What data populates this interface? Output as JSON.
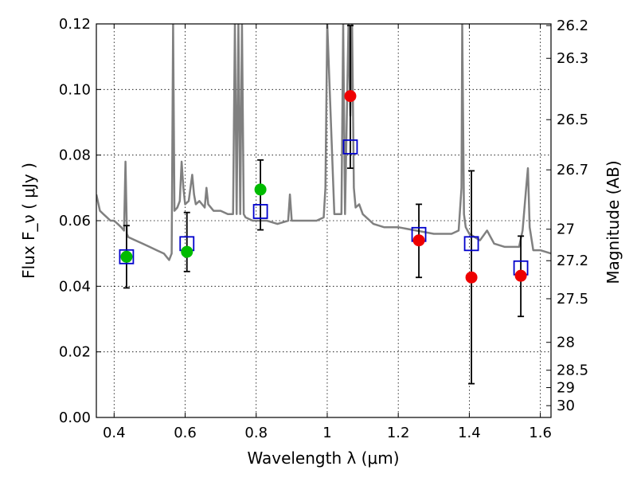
{
  "chart_data": {
    "type": "scatter",
    "title": "",
    "xlabel": "Wavelength  λ (μm)",
    "ylabel": "Flux  F_ν  ( μJy )",
    "ylabel_right": "Magnitude (AB)",
    "xlim": [
      0.35,
      1.63
    ],
    "ylim": [
      0.0,
      0.12
    ],
    "grid": true,
    "x_ticks": [
      0.4,
      0.6,
      0.8,
      1.0,
      1.2,
      1.4,
      1.6
    ],
    "x_tick_labels": [
      "0.4",
      "0.6",
      "0.8",
      "1",
      "1.2",
      "1.4",
      "1.6"
    ],
    "y_ticks": [
      0.0,
      0.02,
      0.04,
      0.06,
      0.08,
      0.1,
      0.12
    ],
    "y_tick_labels": [
      "0.00",
      "0.02",
      "0.04",
      "0.06",
      "0.08",
      "0.10",
      "0.12"
    ],
    "right_ticks": [
      {
        "label": "26.2",
        "flux": 0.1195
      },
      {
        "label": "26.3",
        "flux": 0.1095
      },
      {
        "label": "26.5",
        "flux": 0.0908
      },
      {
        "label": "26.7",
        "flux": 0.0755
      },
      {
        "label": "27",
        "flux": 0.0574
      },
      {
        "label": "27.2",
        "flux": 0.0478
      },
      {
        "label": "27.5",
        "flux": 0.0362
      },
      {
        "label": "28",
        "flux": 0.0229
      },
      {
        "label": "28.5",
        "flux": 0.0144
      },
      {
        "label": "29",
        "flux": 0.0091
      },
      {
        "label": "30",
        "flux": 0.0036
      }
    ],
    "series": [
      {
        "kind": "line",
        "color": "#808080",
        "x": [
          0.35,
          0.36,
          0.37,
          0.38,
          0.39,
          0.4,
          0.41,
          0.42,
          0.428,
          0.432,
          0.436,
          0.44,
          0.46,
          0.48,
          0.5,
          0.52,
          0.54,
          0.555,
          0.562,
          0.566,
          0.57,
          0.578,
          0.585,
          0.59,
          0.595,
          0.6,
          0.61,
          0.62,
          0.625,
          0.63,
          0.64,
          0.655,
          0.66,
          0.665,
          0.68,
          0.7,
          0.72,
          0.735,
          0.74,
          0.745,
          0.75,
          0.755,
          0.76,
          0.765,
          0.77,
          0.79,
          0.81,
          0.83,
          0.86,
          0.89,
          0.895,
          0.9,
          0.94,
          0.97,
          0.99,
          0.995,
          1.0,
          1.02,
          1.04,
          1.045,
          1.05,
          1.06,
          1.065,
          1.07,
          1.075,
          1.08,
          1.09,
          1.1,
          1.13,
          1.16,
          1.2,
          1.25,
          1.3,
          1.35,
          1.37,
          1.378,
          1.38,
          1.385,
          1.39,
          1.4,
          1.43,
          1.45,
          1.47,
          1.5,
          1.54,
          1.55,
          1.56,
          1.565,
          1.57,
          1.58,
          1.6,
          1.63
        ],
        "y": [
          0.068,
          0.063,
          0.062,
          0.061,
          0.06,
          0.06,
          0.059,
          0.058,
          0.057,
          0.078,
          0.056,
          0.055,
          0.054,
          0.053,
          0.052,
          0.051,
          0.05,
          0.048,
          0.05,
          0.12,
          0.063,
          0.064,
          0.066,
          0.078,
          0.07,
          0.065,
          0.066,
          0.074,
          0.068,
          0.065,
          0.066,
          0.064,
          0.07,
          0.065,
          0.063,
          0.063,
          0.062,
          0.062,
          0.12,
          0.062,
          0.12,
          0.062,
          0.12,
          0.062,
          0.061,
          0.06,
          0.06,
          0.06,
          0.059,
          0.06,
          0.068,
          0.06,
          0.06,
          0.06,
          0.061,
          0.07,
          0.12,
          0.062,
          0.062,
          0.12,
          0.062,
          0.12,
          0.092,
          0.12,
          0.07,
          0.064,
          0.065,
          0.062,
          0.059,
          0.058,
          0.058,
          0.057,
          0.056,
          0.056,
          0.057,
          0.07,
          0.12,
          0.062,
          0.058,
          0.056,
          0.054,
          0.057,
          0.053,
          0.052,
          0.052,
          0.057,
          0.07,
          0.076,
          0.058,
          0.051,
          0.051,
          0.05
        ]
      },
      {
        "kind": "points",
        "color": "#00bb00",
        "x": [
          0.435,
          0.605,
          0.812
        ],
        "y": [
          0.049,
          0.0505,
          0.0695
        ]
      },
      {
        "kind": "points",
        "color": "#ee0000",
        "x": [
          1.065,
          1.258,
          1.406,
          1.545
        ],
        "y": [
          0.098,
          0.054,
          0.0427,
          0.0432
        ]
      },
      {
        "kind": "squares",
        "color": "#0000cc",
        "x": [
          0.435,
          0.605,
          0.812,
          1.065,
          1.258,
          1.406,
          1.545
        ],
        "y": [
          0.049,
          0.053,
          0.0628,
          0.0825,
          0.0558,
          0.053,
          0.0456
        ]
      },
      {
        "kind": "errorbars",
        "color": "#000000",
        "x": [
          0.435,
          0.605,
          0.812,
          1.065,
          1.258,
          1.406,
          1.545
        ],
        "ylow": [
          0.0395,
          0.0445,
          0.0572,
          0.076,
          0.0427,
          0.0103,
          0.0308
        ],
        "yhigh": [
          0.0585,
          0.0625,
          0.0785,
          0.1195,
          0.065,
          0.0752,
          0.0553
        ]
      }
    ]
  }
}
